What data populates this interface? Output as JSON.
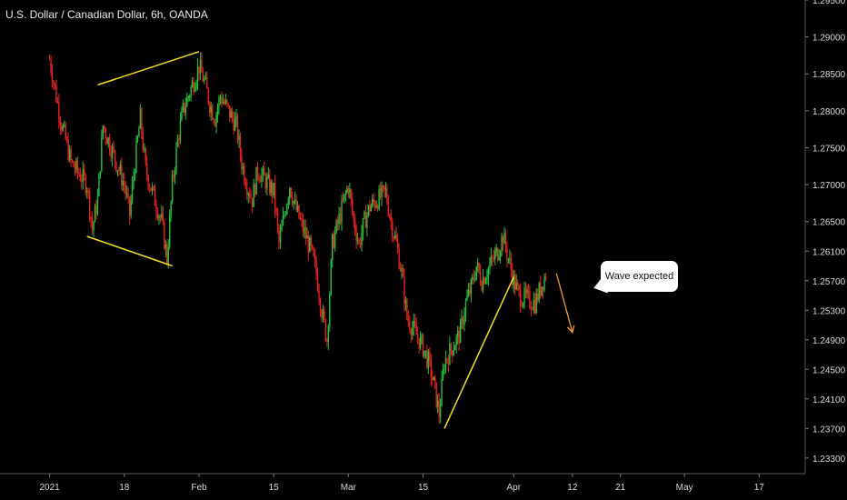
{
  "chart_title": "U.S. Dollar / Canadian Dollar, 6h, OANDA",
  "annotation": "Wave expected",
  "chart_data": {
    "type": "candlestick",
    "title": "U.S. Dollar / Canadian Dollar, 6h, OANDA",
    "ylim": [
      1.2315,
      1.2945
    ],
    "y_ticks": [
      "1.29500",
      "1.29000",
      "1.28500",
      "1.28000",
      "1.27500",
      "1.27000",
      "1.26500",
      "1.26100",
      "1.25700",
      "1.25300",
      "1.24900",
      "1.24500",
      "1.24100",
      "1.23700",
      "1.23300"
    ],
    "x_ticks": [
      "2021",
      "18",
      "Feb",
      "15",
      "Mar",
      "15",
      "Apr",
      "12",
      "21",
      "May",
      "17"
    ],
    "grid": false,
    "colors": {
      "up": "#26c13a",
      "down": "#e8231f",
      "trendline": "#f5e11d",
      "projection": "#f0a020",
      "axis_text": "#d8d8d8",
      "background": "#000000"
    },
    "close_path": [
      [
        "2021-01-04",
        1.287
      ],
      [
        "2021-01-06",
        1.279
      ],
      [
        "2021-01-08",
        1.273
      ],
      [
        "2021-01-11",
        1.27
      ],
      [
        "2021-01-12",
        1.264
      ],
      [
        "2021-01-13",
        1.268
      ],
      [
        "2021-01-14",
        1.278
      ],
      [
        "2021-01-15",
        1.276
      ],
      [
        "2021-01-18",
        1.27
      ],
      [
        "2021-01-19",
        1.266
      ],
      [
        "2021-01-20",
        1.273
      ],
      [
        "2021-01-21",
        1.279
      ],
      [
        "2021-01-22",
        1.272
      ],
      [
        "2021-01-25",
        1.265
      ],
      [
        "2021-01-26",
        1.26
      ],
      [
        "2021-01-27",
        1.27
      ],
      [
        "2021-01-28",
        1.276
      ],
      [
        "2021-01-29",
        1.28
      ],
      [
        "2021-02-01",
        1.286
      ],
      [
        "2021-02-02",
        1.284
      ],
      [
        "2021-02-03",
        1.281
      ],
      [
        "2021-02-04",
        1.279
      ],
      [
        "2021-02-05",
        1.282
      ],
      [
        "2021-02-08",
        1.278
      ],
      [
        "2021-02-09",
        1.273
      ],
      [
        "2021-02-10",
        1.27
      ],
      [
        "2021-02-11",
        1.268
      ],
      [
        "2021-02-12",
        1.272
      ],
      [
        "2021-02-15",
        1.269
      ],
      [
        "2021-02-16",
        1.262
      ],
      [
        "2021-02-17",
        1.266
      ],
      [
        "2021-02-18",
        1.27
      ],
      [
        "2021-02-19",
        1.267
      ],
      [
        "2021-02-22",
        1.261
      ],
      [
        "2021-02-23",
        1.258
      ],
      [
        "2021-02-24",
        1.253
      ],
      [
        "2021-02-25",
        1.249
      ],
      [
        "2021-02-26",
        1.262
      ],
      [
        "2021-03-01",
        1.27
      ],
      [
        "2021-03-02",
        1.265
      ],
      [
        "2021-03-03",
        1.262
      ],
      [
        "2021-03-04",
        1.265
      ],
      [
        "2021-03-05",
        1.267
      ],
      [
        "2021-03-08",
        1.269
      ],
      [
        "2021-03-09",
        1.265
      ],
      [
        "2021-03-10",
        1.262
      ],
      [
        "2021-03-11",
        1.258
      ],
      [
        "2021-03-12",
        1.252
      ],
      [
        "2021-03-15",
        1.248
      ],
      [
        "2021-03-16",
        1.246
      ],
      [
        "2021-03-17",
        1.243
      ],
      [
        "2021-03-18",
        1.239
      ],
      [
        "2021-03-19",
        1.246
      ],
      [
        "2021-03-22",
        1.25
      ],
      [
        "2021-03-23",
        1.254
      ],
      [
        "2021-03-24",
        1.256
      ],
      [
        "2021-03-25",
        1.259
      ],
      [
        "2021-03-26",
        1.257
      ],
      [
        "2021-03-29",
        1.261
      ],
      [
        "2021-03-30",
        1.263
      ],
      [
        "2021-03-31",
        1.26
      ],
      [
        "2021-04-01",
        1.257
      ],
      [
        "2021-04-02",
        1.255
      ],
      [
        "2021-04-05",
        1.254
      ],
      [
        "2021-04-06",
        1.256
      ],
      [
        "2021-04-07",
        1.258
      ]
    ],
    "trendlines": [
      [
        [
          "2021-01-13",
          1.2835
        ],
        [
          "2021-02-01",
          1.288
        ]
      ],
      [
        [
          "2021-01-11",
          1.263
        ],
        [
          "2021-01-27",
          1.259
        ]
      ],
      [
        [
          "2021-03-19",
          1.237
        ],
        [
          "2021-04-01",
          1.2575
        ]
      ]
    ],
    "projection": [
      [
        "2021-04-09",
        1.258
      ],
      [
        "2021-04-12",
        1.25
      ]
    ]
  }
}
